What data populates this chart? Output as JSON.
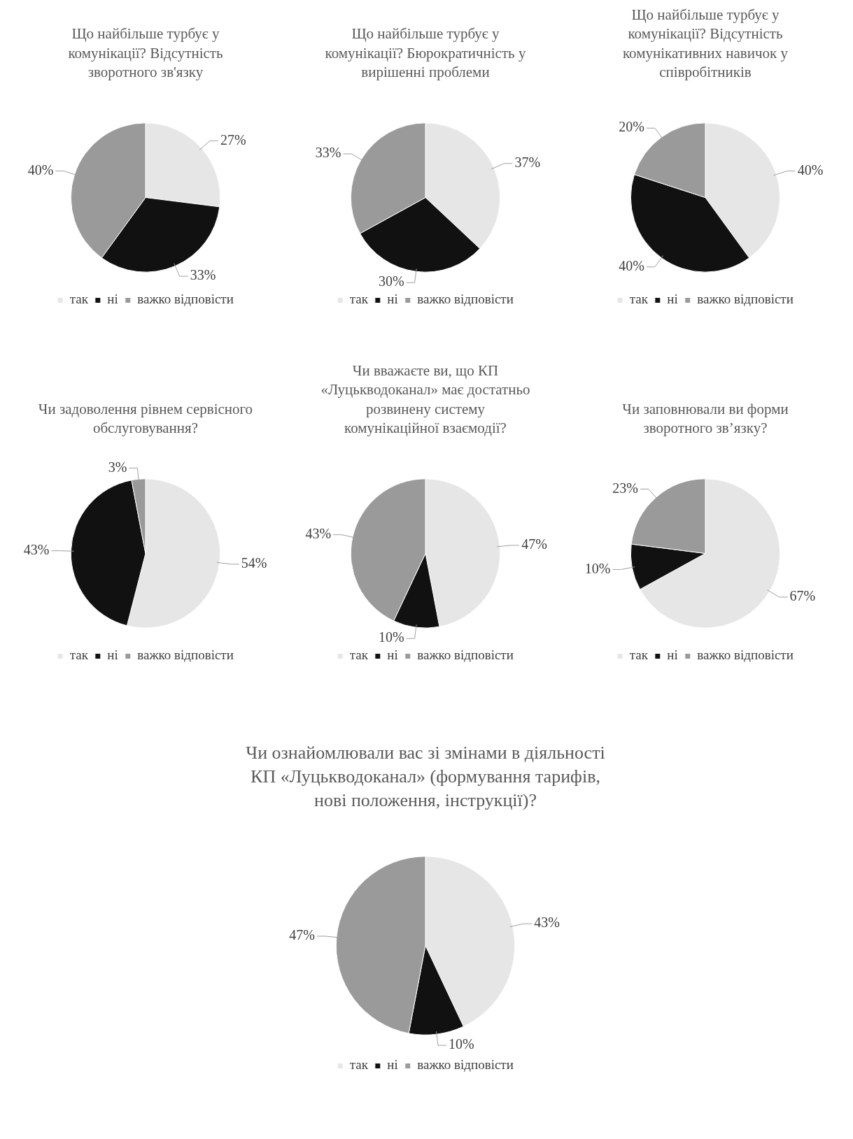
{
  "chart_data": [
    {
      "type": "pie",
      "title": "Що найбільше турбує у комунікації? Відсутність зворотного зв'язку",
      "categories": [
        "так",
        "ні",
        "важко відповісти"
      ],
      "values": [
        27,
        33,
        40
      ],
      "value_labels": [
        "27%",
        "33%",
        "40%"
      ],
      "colors": [
        "#e6e6e6",
        "#111111",
        "#9a9a9a"
      ],
      "legend": "bottom"
    },
    {
      "type": "pie",
      "title": "Що найбільше турбує у комунікації? Бюрократичність у вирішенні проблеми",
      "categories": [
        "так",
        "ні",
        "важко відповісти"
      ],
      "values": [
        37,
        30,
        33
      ],
      "value_labels": [
        "37%",
        "30%",
        "33%"
      ],
      "colors": [
        "#e6e6e6",
        "#111111",
        "#9a9a9a"
      ],
      "legend": "bottom"
    },
    {
      "type": "pie",
      "title": "Що найбільше турбує у комунікації? Відсутність комунікативних навичок у співробітників",
      "categories": [
        "так",
        "ні",
        "важко відповісти"
      ],
      "values": [
        40,
        40,
        20
      ],
      "value_labels": [
        "40%",
        "40%",
        "20%"
      ],
      "colors": [
        "#e6e6e6",
        "#111111",
        "#9a9a9a"
      ],
      "legend": "bottom"
    },
    {
      "type": "pie",
      "title": "Чи задоволення рівнем сервісного обслуговування?",
      "categories": [
        "так",
        "ні",
        "важко відповісти"
      ],
      "values": [
        54,
        43,
        3
      ],
      "value_labels": [
        "54%",
        "43%",
        "3%"
      ],
      "colors": [
        "#e6e6e6",
        "#111111",
        "#9a9a9a"
      ],
      "legend": "bottom"
    },
    {
      "type": "pie",
      "title": "Чи вважаєте ви, що КП «Луцькводоканал» має достатньо розвинену систему комунікаційної взаємодії?",
      "categories": [
        "так",
        "ні",
        "важко відповісти"
      ],
      "values": [
        47,
        10,
        43
      ],
      "value_labels": [
        "47%",
        "10%",
        "43%"
      ],
      "colors": [
        "#e6e6e6",
        "#111111",
        "#9a9a9a"
      ],
      "legend": "bottom"
    },
    {
      "type": "pie",
      "title": "Чи заповнювали ви форми зворотного зв’язку?",
      "categories": [
        "так",
        "ні",
        "важко відповісти"
      ],
      "values": [
        67,
        10,
        23
      ],
      "value_labels": [
        "67%",
        "10%",
        "23%"
      ],
      "colors": [
        "#e6e6e6",
        "#111111",
        "#9a9a9a"
      ],
      "legend": "bottom"
    },
    {
      "type": "pie",
      "title": "Чи ознайомлювали вас зі змінами в діяльності КП «Луцькводоканал» (формування тарифів, нові положення, інструкції)?",
      "categories": [
        "так",
        "ні",
        "важко відповісти"
      ],
      "values": [
        43,
        10,
        47
      ],
      "value_labels": [
        "43%",
        "10%",
        "47%"
      ],
      "colors": [
        "#e6e6e6",
        "#111111",
        "#9a9a9a"
      ],
      "legend": "bottom"
    }
  ]
}
